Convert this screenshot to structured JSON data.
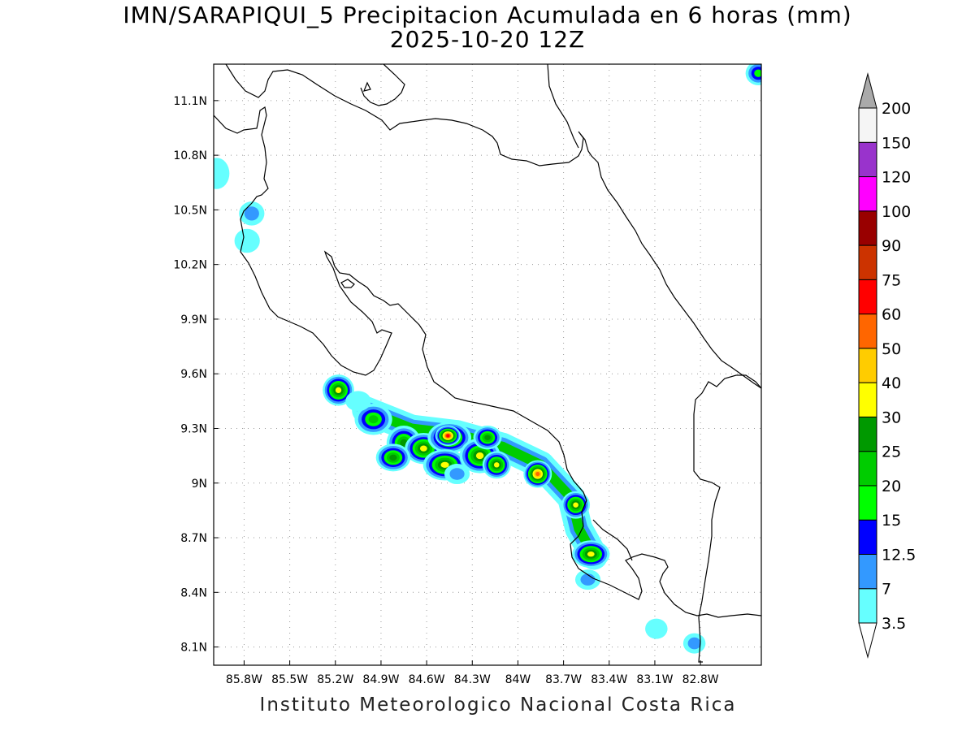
{
  "header": {
    "title_line1": "IMN/SARAPIQUI_5 Precipitacion Acumulada en 6 horas (mm)",
    "title_line2": "2025-10-20 12Z"
  },
  "footer": {
    "credit": "Instituto Meteorologico Nacional Costa Rica"
  },
  "map": {
    "lon_range": [
      -86.0,
      -82.4
    ],
    "lat_range": [
      8.0,
      11.3
    ],
    "grid": true,
    "x_ticks": [
      {
        "value": -85.8,
        "label": "85.8W"
      },
      {
        "value": -85.5,
        "label": "85.5W"
      },
      {
        "value": -85.2,
        "label": "85.2W"
      },
      {
        "value": -84.9,
        "label": "84.9W"
      },
      {
        "value": -84.6,
        "label": "84.6W"
      },
      {
        "value": -84.3,
        "label": "84.3W"
      },
      {
        "value": -84.0,
        "label": "84W"
      },
      {
        "value": -83.7,
        "label": "83.7W"
      },
      {
        "value": -83.4,
        "label": "83.4W"
      },
      {
        "value": -83.1,
        "label": "83.1W"
      },
      {
        "value": -82.8,
        "label": "82.8W"
      }
    ],
    "y_ticks": [
      {
        "value": 11.1,
        "label": "11.1N"
      },
      {
        "value": 10.8,
        "label": "10.8N"
      },
      {
        "value": 10.5,
        "label": "10.5N"
      },
      {
        "value": 10.2,
        "label": "10.2N"
      },
      {
        "value": 9.9,
        "label": "9.9N"
      },
      {
        "value": 9.6,
        "label": "9.6N"
      },
      {
        "value": 9.3,
        "label": "9.3N"
      },
      {
        "value": 9.0,
        "label": "9N"
      },
      {
        "value": 8.7,
        "label": "8.7N"
      },
      {
        "value": 8.4,
        "label": "8.4N"
      },
      {
        "value": 8.1,
        "label": "8.1N"
      }
    ]
  },
  "colorbar": {
    "colors": [
      "#66ffff",
      "#3399ff",
      "#0000ff",
      "#00ff00",
      "#00cc00",
      "#009900",
      "#ffff00",
      "#ffcc00",
      "#ff6600",
      "#ff0000",
      "#cc3300",
      "#990000",
      "#ff00ff",
      "#9933cc",
      "#f5f5f5"
    ],
    "over_color": "#aaaaaa",
    "labels": [
      "3.5",
      "7",
      "12.5",
      "15",
      "20",
      "25",
      "30",
      "40",
      "50",
      "60",
      "75",
      "90",
      "100",
      "120",
      "150",
      "200"
    ]
  },
  "precip_blobs": [
    {
      "lon": -85.18,
      "lat": 9.51,
      "rx": 0.05,
      "ry": 0.05,
      "level": 6
    },
    {
      "lon": -84.95,
      "lat": 9.35,
      "rx": 0.07,
      "ry": 0.05,
      "level": 4
    },
    {
      "lon": -84.75,
      "lat": 9.22,
      "rx": 0.06,
      "ry": 0.06,
      "level": 5
    },
    {
      "lon": -84.62,
      "lat": 9.19,
      "rx": 0.07,
      "ry": 0.05,
      "level": 6
    },
    {
      "lon": -84.45,
      "lat": 9.25,
      "rx": 0.09,
      "ry": 0.05,
      "level": 6
    },
    {
      "lon": -84.46,
      "lat": 9.26,
      "rx": 0.03,
      "ry": 0.02,
      "level": 9
    },
    {
      "lon": -84.48,
      "lat": 9.1,
      "rx": 0.09,
      "ry": 0.05,
      "level": 6
    },
    {
      "lon": -84.25,
      "lat": 9.15,
      "rx": 0.08,
      "ry": 0.06,
      "level": 6
    },
    {
      "lon": -84.14,
      "lat": 9.1,
      "rx": 0.04,
      "ry": 0.04,
      "level": 6
    },
    {
      "lon": -84.82,
      "lat": 9.14,
      "rx": 0.06,
      "ry": 0.04,
      "level": 5
    },
    {
      "lon": -84.2,
      "lat": 9.25,
      "rx": 0.04,
      "ry": 0.03,
      "level": 5
    },
    {
      "lon": -83.87,
      "lat": 9.05,
      "rx": 0.04,
      "ry": 0.04,
      "level": 8
    },
    {
      "lon": -83.62,
      "lat": 8.88,
      "rx": 0.04,
      "ry": 0.04,
      "level": 6
    },
    {
      "lon": -83.52,
      "lat": 8.61,
      "rx": 0.07,
      "ry": 0.04,
      "level": 6
    },
    {
      "lon": -83.54,
      "lat": 8.47,
      "rx": 0.03,
      "ry": 0.02,
      "level": 1
    },
    {
      "lon": -85.75,
      "lat": 10.48,
      "rx": 0.03,
      "ry": 0.03,
      "level": 1
    },
    {
      "lon": -85.78,
      "lat": 10.33,
      "rx": 0.03,
      "ry": 0.03,
      "level": 0
    },
    {
      "lon": -85.98,
      "lat": 10.7,
      "rx": 0.03,
      "ry": 0.05,
      "level": 0
    },
    {
      "lon": -82.42,
      "lat": 11.25,
      "rx": 0.03,
      "ry": 0.03,
      "level": 3
    },
    {
      "lon": -83.09,
      "lat": 8.2,
      "rx": 0.02,
      "ry": 0.02,
      "level": 0
    },
    {
      "lon": -82.84,
      "lat": 8.12,
      "rx": 0.02,
      "ry": 0.02,
      "level": 1
    },
    {
      "lon": -85.05,
      "lat": 9.45,
      "rx": 0.03,
      "ry": 0.02,
      "level": 0
    },
    {
      "lon": -84.4,
      "lat": 9.05,
      "rx": 0.03,
      "ry": 0.02,
      "level": 1
    }
  ]
}
